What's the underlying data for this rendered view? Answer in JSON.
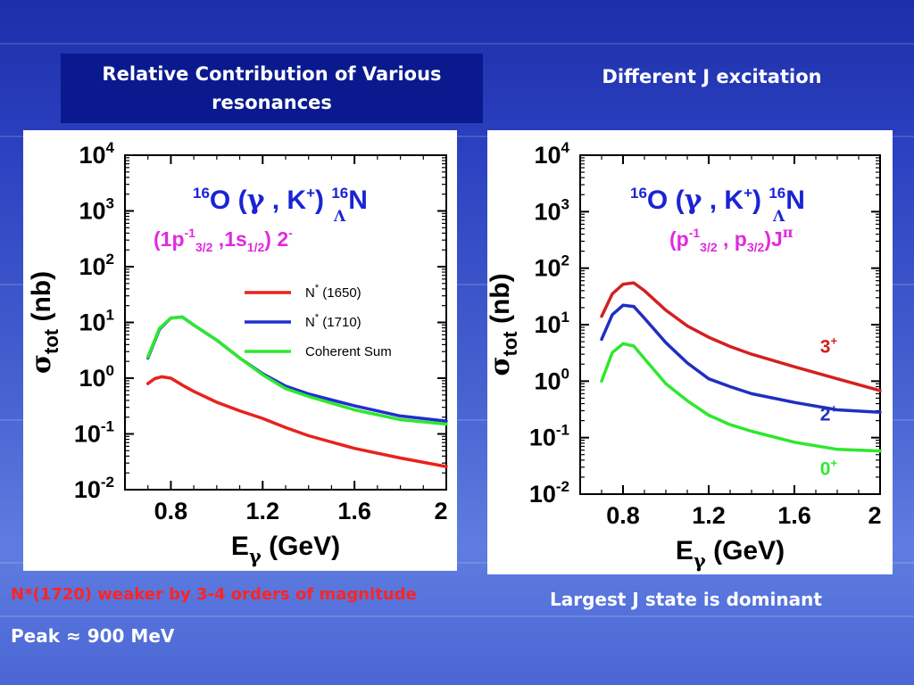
{
  "slide": {
    "left_title": "Relative Contribution of Various resonances",
    "right_title": "Different J excitation",
    "caption_red": "N*(1720) weaker by 3-4 orders of magnitude",
    "caption_peak": "Peak ≈ 900 MeV",
    "caption_largest": "Largest J state is dominant"
  },
  "chart_data": [
    {
      "type": "line",
      "y_scale": "log",
      "xlim": [
        0.6,
        2.0
      ],
      "ylim": [
        0.01,
        10000
      ],
      "x_ticks": [
        "0.8",
        "1.2",
        "1.6",
        "2"
      ],
      "y_ticks": [
        "10^4",
        "10^3",
        "10^2",
        "10^1",
        "10^0",
        "10^-1",
        "10^-2"
      ],
      "xlabel": "Eγ (GeV)",
      "ylabel": "σtot (nb)",
      "reaction_label": "16O (γ , K+) 16ΛN",
      "state_label": "(1p3/2^-1 ,1s1/2) 2^-",
      "legend": [
        "N* (1650)",
        "N* (1710)",
        "Coherent Sum"
      ],
      "colors": {
        "N* (1650)": "#e8221f",
        "N* (1710)": "#1f2fd0",
        "Coherent Sum": "#2ee82e"
      },
      "series": [
        {
          "name": "N* (1650)",
          "x": [
            0.7,
            0.73,
            0.76,
            0.8,
            0.85,
            0.9,
            1.0,
            1.1,
            1.2,
            1.3,
            1.4,
            1.6,
            1.8,
            2.0
          ],
          "y": [
            0.8,
            0.98,
            1.06,
            1.0,
            0.75,
            0.58,
            0.37,
            0.26,
            0.19,
            0.13,
            0.093,
            0.055,
            0.037,
            0.026
          ]
        },
        {
          "name": "N* (1710)",
          "x": [
            0.7,
            0.75,
            0.8,
            0.85,
            0.9,
            1.0,
            1.1,
            1.2,
            1.3,
            1.4,
            1.6,
            1.8,
            2.0
          ],
          "y": [
            2.3,
            7.5,
            12,
            12.5,
            9,
            4.8,
            2.3,
            1.2,
            0.72,
            0.52,
            0.32,
            0.21,
            0.17
          ]
        },
        {
          "name": "Coherent Sum",
          "x": [
            0.7,
            0.75,
            0.8,
            0.85,
            0.9,
            1.0,
            1.1,
            1.2,
            1.3,
            1.4,
            1.6,
            1.8,
            2.0
          ],
          "y": [
            2.4,
            7.8,
            12,
            12.5,
            9,
            4.8,
            2.3,
            1.15,
            0.65,
            0.47,
            0.27,
            0.18,
            0.15
          ]
        }
      ]
    },
    {
      "type": "line",
      "y_scale": "log",
      "xlim": [
        0.6,
        2.0
      ],
      "ylim": [
        0.01,
        10000
      ],
      "x_ticks": [
        "0.8",
        "1.2",
        "1.6",
        "2"
      ],
      "y_ticks": [
        "10^4",
        "10^3",
        "10^2",
        "10^1",
        "10^0",
        "10^-1",
        "10^-2"
      ],
      "xlabel": "Eγ (GeV)",
      "ylabel": "σtot (nb)",
      "reaction_label": "16O (γ , K+) 16ΛN",
      "state_label": "(p3/2^-1 , p3/2)J^π",
      "series": [
        {
          "name": "3+",
          "color": "#d42020",
          "x": [
            0.7,
            0.75,
            0.8,
            0.85,
            0.9,
            1.0,
            1.1,
            1.2,
            1.3,
            1.4,
            1.6,
            1.8,
            2.0
          ],
          "y": [
            14,
            35,
            52,
            55,
            40,
            18,
            9.5,
            6,
            4.1,
            3,
            1.8,
            1.1,
            0.68
          ]
        },
        {
          "name": "2+",
          "color": "#1f2fc0",
          "x": [
            0.7,
            0.75,
            0.8,
            0.85,
            0.9,
            1.0,
            1.1,
            1.2,
            1.3,
            1.4,
            1.6,
            1.8,
            2.0
          ],
          "y": [
            5.5,
            15,
            22,
            21,
            13,
            4.8,
            2.1,
            1.1,
            0.8,
            0.6,
            0.42,
            0.31,
            0.28
          ]
        },
        {
          "name": "0+",
          "color": "#2ee82e",
          "x": [
            0.7,
            0.75,
            0.8,
            0.85,
            0.9,
            1.0,
            1.1,
            1.2,
            1.3,
            1.4,
            1.6,
            1.8,
            2.0
          ],
          "y": [
            1.0,
            3.2,
            4.6,
            4.2,
            2.5,
            0.9,
            0.45,
            0.25,
            0.17,
            0.13,
            0.083,
            0.062,
            0.058
          ]
        }
      ]
    }
  ]
}
